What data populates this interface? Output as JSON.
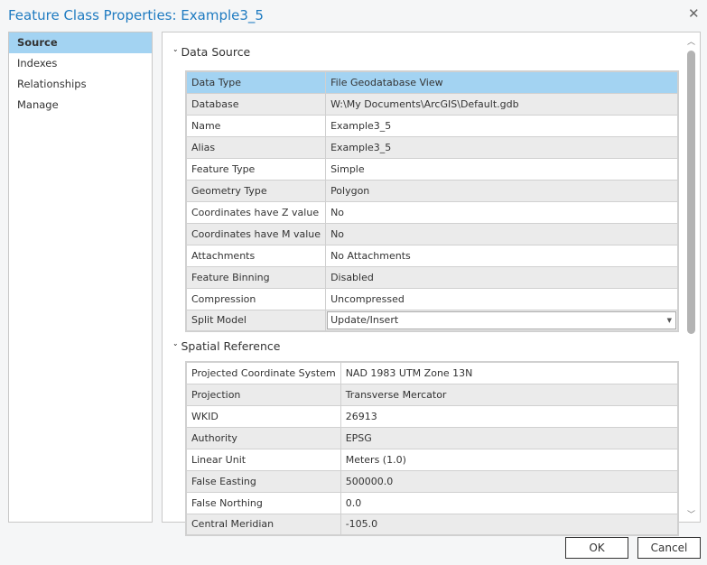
{
  "window": {
    "title": "Feature Class Properties: Example3_5",
    "close_icon": "close-icon"
  },
  "sidebar": {
    "items": [
      {
        "label": "Source",
        "selected": true
      },
      {
        "label": "Indexes"
      },
      {
        "label": "Relationships"
      },
      {
        "label": "Manage"
      }
    ]
  },
  "data_source": {
    "heading": "Data Source",
    "rows": [
      {
        "k": "Data Type",
        "v": "File Geodatabase View"
      },
      {
        "k": "Database",
        "v": "W:\\My Documents\\ArcGIS\\Default.gdb"
      },
      {
        "k": "Name",
        "v": "Example3_5"
      },
      {
        "k": "Alias",
        "v": "Example3_5"
      },
      {
        "k": "Feature Type",
        "v": "Simple"
      },
      {
        "k": "Geometry Type",
        "v": "Polygon"
      },
      {
        "k": "Coordinates have Z value",
        "v": "No"
      },
      {
        "k": "Coordinates have M value",
        "v": "No"
      },
      {
        "k": "Attachments",
        "v": "No Attachments"
      },
      {
        "k": "Feature Binning",
        "v": "Disabled"
      },
      {
        "k": "Compression",
        "v": "Uncompressed"
      }
    ],
    "split_model": {
      "k": "Split Model",
      "v": "Update/Insert"
    }
  },
  "spatial_reference": {
    "heading": "Spatial Reference",
    "rows": [
      {
        "k": "Projected Coordinate System",
        "v": "NAD 1983 UTM Zone 13N"
      },
      {
        "k": "Projection",
        "v": "Transverse Mercator"
      },
      {
        "k": "WKID",
        "v": "26913"
      },
      {
        "k": "Authority",
        "v": "EPSG"
      },
      {
        "k": "Linear Unit",
        "v": "Meters (1.0)"
      },
      {
        "k": "False Easting",
        "v": "500000.0"
      },
      {
        "k": "False Northing",
        "v": "0.0"
      },
      {
        "k": "Central Meridian",
        "v": "-105.0"
      }
    ]
  },
  "buttons": {
    "ok": "OK",
    "cancel": "Cancel"
  },
  "colors": {
    "accent": "#1f7bc1",
    "selection": "#a3d3f2"
  }
}
